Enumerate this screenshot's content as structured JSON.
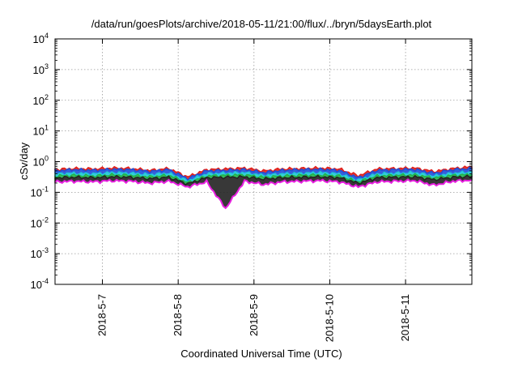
{
  "chart_data": {
    "type": "area",
    "title": "/data/run/goesPlots/archive/2018-05-11/21:00/flux/../bryn/5daysEarth.plot",
    "xlabel": "Coordinated Universal Time (UTC)",
    "ylabel": "cSv/day",
    "yscale": "log",
    "ylim": [
      0.0001,
      10000
    ],
    "yticks": [
      {
        "value": 0.0001,
        "base": "10",
        "exp": "-4"
      },
      {
        "value": 0.001,
        "base": "10",
        "exp": "-3"
      },
      {
        "value": 0.01,
        "base": "10",
        "exp": "-2"
      },
      {
        "value": 0.1,
        "base": "10",
        "exp": "-1"
      },
      {
        "value": 1,
        "base": "10",
        "exp": "0"
      },
      {
        "value": 10,
        "base": "10",
        "exp": "1"
      },
      {
        "value": 100,
        "base": "10",
        "exp": "2"
      },
      {
        "value": 1000,
        "base": "10",
        "exp": "3"
      },
      {
        "value": 10000,
        "base": "10",
        "exp": "4"
      }
    ],
    "xlim": [
      "2018-05-06T09:00",
      "2018-05-11T21:00"
    ],
    "xticks": [
      {
        "value": "2018-05-07T00:00",
        "label": "2018-5-7"
      },
      {
        "value": "2018-05-08T00:00",
        "label": "2018-5-8"
      },
      {
        "value": "2018-05-09T00:00",
        "label": "2018-5-9"
      },
      {
        "value": "2018-05-10T00:00",
        "label": "2018-5-10"
      },
      {
        "value": "2018-05-11T00:00",
        "label": "2018-5-11"
      }
    ],
    "grid": true,
    "x": [
      "2018-05-06T09:00",
      "2018-05-06T15:00",
      "2018-05-06T21:00",
      "2018-05-07T03:00",
      "2018-05-07T09:00",
      "2018-05-07T15:00",
      "2018-05-07T21:00",
      "2018-05-08T03:00",
      "2018-05-08T09:00",
      "2018-05-08T15:00",
      "2018-05-08T21:00",
      "2018-05-09T03:00",
      "2018-05-09T09:00",
      "2018-05-09T15:00",
      "2018-05-09T21:00",
      "2018-05-10T03:00",
      "2018-05-10T09:00",
      "2018-05-10T15:00",
      "2018-05-10T21:00",
      "2018-05-11T03:00",
      "2018-05-11T09:00",
      "2018-05-11T15:00",
      "2018-05-11T21:00"
    ],
    "series": [
      {
        "color": "#e0201b",
        "values": [
          0.55,
          0.6,
          0.58,
          0.62,
          0.6,
          0.52,
          0.6,
          0.32,
          0.55,
          0.58,
          0.62,
          0.5,
          0.58,
          0.6,
          0.62,
          0.58,
          0.35,
          0.58,
          0.6,
          0.62,
          0.48,
          0.6,
          0.68
        ]
      },
      {
        "color": "#1f4fd8",
        "values": [
          0.5,
          0.55,
          0.52,
          0.56,
          0.55,
          0.48,
          0.55,
          0.28,
          0.5,
          0.52,
          0.55,
          0.44,
          0.52,
          0.55,
          0.56,
          0.52,
          0.3,
          0.52,
          0.55,
          0.56,
          0.42,
          0.55,
          0.6
        ]
      },
      {
        "color": "#22c6d8",
        "values": [
          0.4,
          0.42,
          0.4,
          0.44,
          0.42,
          0.38,
          0.42,
          0.24,
          0.4,
          0.42,
          0.44,
          0.36,
          0.4,
          0.42,
          0.44,
          0.4,
          0.25,
          0.4,
          0.42,
          0.44,
          0.34,
          0.42,
          0.46
        ]
      },
      {
        "color": "#21b34a",
        "values": [
          0.34,
          0.36,
          0.34,
          0.37,
          0.36,
          0.32,
          0.36,
          0.21,
          0.34,
          0.36,
          0.37,
          0.31,
          0.34,
          0.36,
          0.37,
          0.34,
          0.22,
          0.34,
          0.36,
          0.37,
          0.3,
          0.36,
          0.38
        ]
      },
      {
        "color": "#222222",
        "values": [
          0.3,
          0.31,
          0.3,
          0.32,
          0.31,
          0.28,
          0.31,
          0.19,
          0.3,
          0.31,
          0.32,
          0.27,
          0.3,
          0.31,
          0.32,
          0.3,
          0.2,
          0.3,
          0.31,
          0.32,
          0.26,
          0.31,
          0.33
        ]
      },
      {
        "color": "#e81ee0",
        "values": [
          0.22,
          0.23,
          0.22,
          0.24,
          0.23,
          0.2,
          0.23,
          0.15,
          0.22,
          0.03,
          0.23,
          0.18,
          0.22,
          0.23,
          0.24,
          0.22,
          0.15,
          0.22,
          0.23,
          0.24,
          0.17,
          0.23,
          0.25
        ]
      }
    ]
  }
}
